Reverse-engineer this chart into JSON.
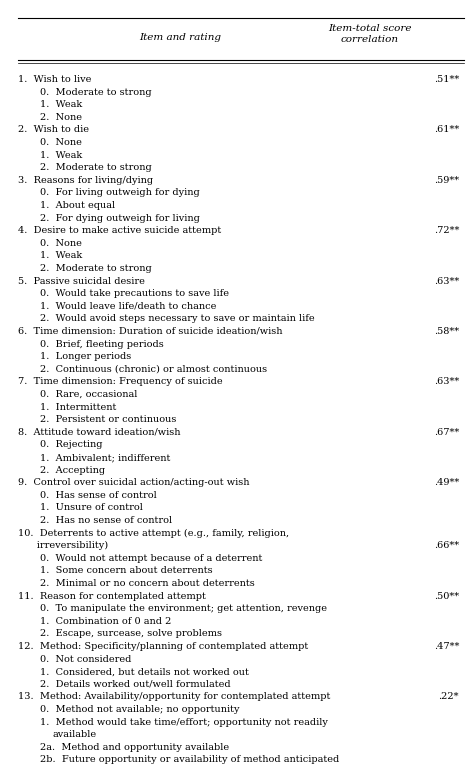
{
  "title_col1": "Item and rating",
  "title_col2": "Item-total score\ncorrelation",
  "rows": [
    {
      "indent": 0,
      "text": "1.  Wish to live",
      "corr": ".51**",
      "show_corr": true
    },
    {
      "indent": 1,
      "text": "0.  Moderate to strong",
      "corr": "",
      "show_corr": false
    },
    {
      "indent": 1,
      "text": "1.  Weak",
      "corr": "",
      "show_corr": false
    },
    {
      "indent": 1,
      "text": "2.  None",
      "corr": "",
      "show_corr": false
    },
    {
      "indent": 0,
      "text": "2.  Wish to die",
      "corr": ".61**",
      "show_corr": true
    },
    {
      "indent": 1,
      "text": "0.  None",
      "corr": "",
      "show_corr": false
    },
    {
      "indent": 1,
      "text": "1.  Weak",
      "corr": "",
      "show_corr": false
    },
    {
      "indent": 1,
      "text": "2.  Moderate to strong",
      "corr": "",
      "show_corr": false
    },
    {
      "indent": 0,
      "text": "3.  Reasons for living/dying",
      "corr": ".59**",
      "show_corr": true
    },
    {
      "indent": 1,
      "text": "0.  For living outweigh for dying",
      "corr": "",
      "show_corr": false
    },
    {
      "indent": 1,
      "text": "1.  About equal",
      "corr": "",
      "show_corr": false
    },
    {
      "indent": 1,
      "text": "2.  For dying outweigh for living",
      "corr": "",
      "show_corr": false
    },
    {
      "indent": 0,
      "text": "4.  Desire to make active suicide attempt",
      "corr": ".72**",
      "show_corr": true
    },
    {
      "indent": 1,
      "text": "0.  None",
      "corr": "",
      "show_corr": false
    },
    {
      "indent": 1,
      "text": "1.  Weak",
      "corr": "",
      "show_corr": false
    },
    {
      "indent": 1,
      "text": "2.  Moderate to strong",
      "corr": "",
      "show_corr": false
    },
    {
      "indent": 0,
      "text": "5.  Passive suicidal desire",
      "corr": ".63**",
      "show_corr": true
    },
    {
      "indent": 1,
      "text": "0.  Would take precautions to save life",
      "corr": "",
      "show_corr": false
    },
    {
      "indent": 1,
      "text": "1.  Would leave life/death to chance",
      "corr": "",
      "show_corr": false
    },
    {
      "indent": 1,
      "text": "2.  Would avoid steps necessary to save or maintain life",
      "corr": "",
      "show_corr": false
    },
    {
      "indent": 0,
      "text": "6.  Time dimension: Duration of suicide ideation/wish",
      "corr": ".58**",
      "show_corr": true
    },
    {
      "indent": 1,
      "text": "0.  Brief, fleeting periods",
      "corr": "",
      "show_corr": false
    },
    {
      "indent": 1,
      "text": "1.  Longer periods",
      "corr": "",
      "show_corr": false
    },
    {
      "indent": 1,
      "text": "2.  Continuous (chronic) or almost continuous",
      "corr": "",
      "show_corr": false
    },
    {
      "indent": 0,
      "text": "7.  Time dimension: Frequency of suicide",
      "corr": ".63**",
      "show_corr": true
    },
    {
      "indent": 1,
      "text": "0.  Rare, occasional",
      "corr": "",
      "show_corr": false
    },
    {
      "indent": 1,
      "text": "1.  Intermittent",
      "corr": "",
      "show_corr": false
    },
    {
      "indent": 1,
      "text": "2.  Persistent or continuous",
      "corr": "",
      "show_corr": false
    },
    {
      "indent": 0,
      "text": "8.  Attitude toward ideation/wish",
      "corr": ".67**",
      "show_corr": true
    },
    {
      "indent": 1,
      "text": "0.  Rejecting",
      "corr": "",
      "show_corr": false
    },
    {
      "indent": 1,
      "text": "1.  Ambivalent; indifferent",
      "corr": "",
      "show_corr": false
    },
    {
      "indent": 1,
      "text": "2.  Accepting",
      "corr": "",
      "show_corr": false
    },
    {
      "indent": 0,
      "text": "9.  Control over suicidal action/acting-out wish",
      "corr": ".49**",
      "show_corr": true
    },
    {
      "indent": 1,
      "text": "0.  Has sense of control",
      "corr": "",
      "show_corr": false
    },
    {
      "indent": 1,
      "text": "1.  Unsure of control",
      "corr": "",
      "show_corr": false
    },
    {
      "indent": 1,
      "text": "2.  Has no sense of control",
      "corr": "",
      "show_corr": false
    },
    {
      "indent": 0,
      "text": "10.  Deterrents to active attempt (e.g., family, religion,",
      "corr": "",
      "show_corr": false
    },
    {
      "indent": 0,
      "text": "      irreversibility)",
      "corr": ".66**",
      "show_corr": true
    },
    {
      "indent": 1,
      "text": "0.  Would not attempt because of a deterrent",
      "corr": "",
      "show_corr": false
    },
    {
      "indent": 1,
      "text": "1.  Some concern about deterrents",
      "corr": "",
      "show_corr": false
    },
    {
      "indent": 1,
      "text": "2.  Minimal or no concern about deterrents",
      "corr": "",
      "show_corr": false
    },
    {
      "indent": 0,
      "text": "11.  Reason for contemplated attempt",
      "corr": ".50**",
      "show_corr": true
    },
    {
      "indent": 1,
      "text": "0.  To manipulate the environment; get attention, revenge",
      "corr": "",
      "show_corr": false
    },
    {
      "indent": 1,
      "text": "1.  Combination of 0 and 2",
      "corr": "",
      "show_corr": false
    },
    {
      "indent": 1,
      "text": "2.  Escape, surcease, solve problems",
      "corr": "",
      "show_corr": false
    },
    {
      "indent": 0,
      "text": "12.  Method: Specificity/planning of contemplated attempt",
      "corr": ".47**",
      "show_corr": true
    },
    {
      "indent": 1,
      "text": "0.  Not considered",
      "corr": "",
      "show_corr": false
    },
    {
      "indent": 1,
      "text": "1.  Considered, but details not worked out",
      "corr": "",
      "show_corr": false
    },
    {
      "indent": 1,
      "text": "2.  Details worked out/well formulated",
      "corr": "",
      "show_corr": false
    },
    {
      "indent": 0,
      "text": "13.  Method: Availability/opportunity for contemplated attempt",
      "corr": ".22*",
      "show_corr": true
    },
    {
      "indent": 1,
      "text": "0.  Method not available; no opportunity",
      "corr": "",
      "show_corr": false
    },
    {
      "indent": 1,
      "text": "1.  Method would take time/effort; opportunity not readily",
      "corr": "",
      "show_corr": false
    },
    {
      "indent": 2,
      "text": "available",
      "corr": "",
      "show_corr": false
    },
    {
      "indent": 1,
      "text": "2a.  Method and opportunity available",
      "corr": "",
      "show_corr": false
    },
    {
      "indent": 1,
      "text": "2b.  Future opportunity or availability of method anticipated",
      "corr": "",
      "show_corr": false
    }
  ],
  "font_size": 7.0,
  "header_font_size": 7.5,
  "bg_color": "#ffffff",
  "text_color": "#000000",
  "line_color": "#000000",
  "fig_width": 4.74,
  "fig_height": 7.67,
  "dpi": 100
}
